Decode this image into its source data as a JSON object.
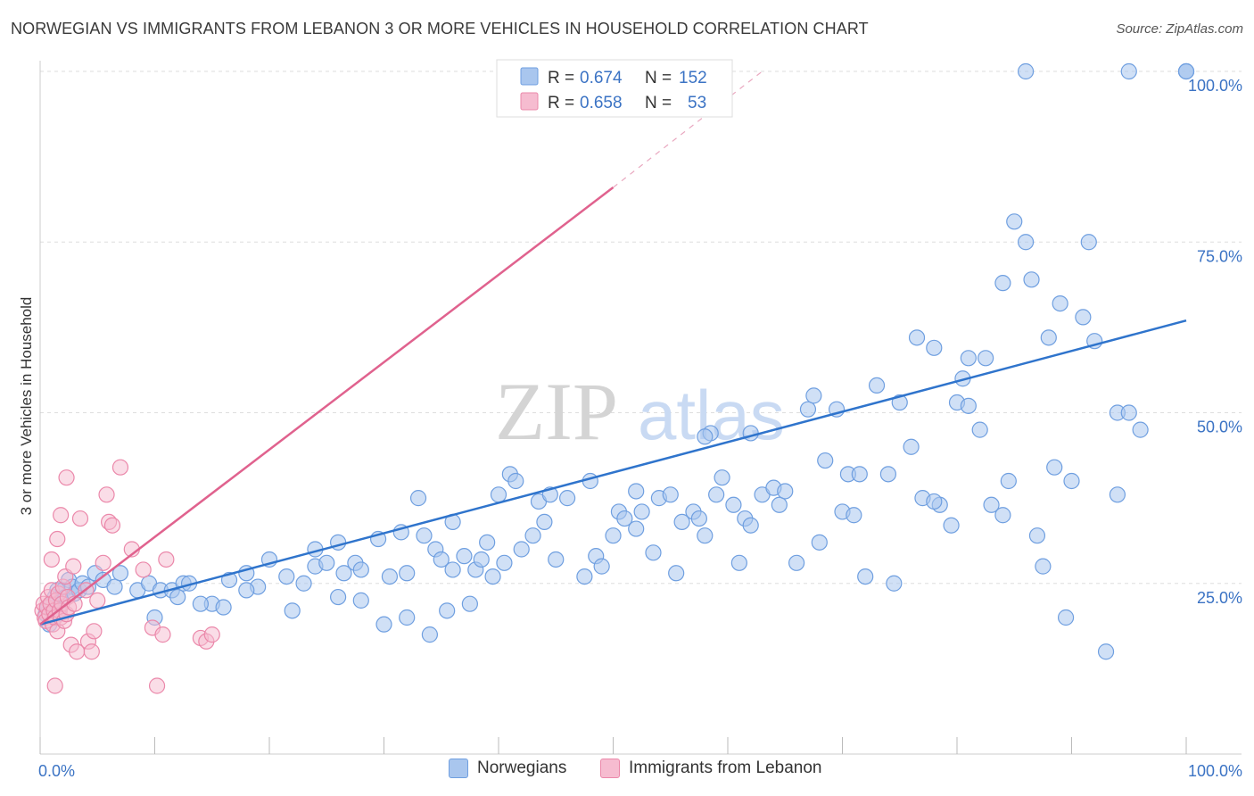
{
  "header": {
    "title": "NORWEGIAN VS IMMIGRANTS FROM LEBANON 3 OR MORE VEHICLES IN HOUSEHOLD CORRELATION CHART",
    "source": "Source: ZipAtlas.com"
  },
  "watermark": {
    "part1": "ZIP",
    "part2": "atlas"
  },
  "colors": {
    "blue_fill": "#a9c6ee",
    "blue_stroke": "#6f9fe0",
    "blue_line": "#2f74cc",
    "pink_fill": "#f6bcd0",
    "pink_stroke": "#eb88aa",
    "pink_line": "#e0628e",
    "accent_text": "#3b73c4",
    "grid": "#dddddd"
  },
  "legend": {
    "rows": [
      {
        "r_label": "R = ",
        "r_value": "0.674",
        "n_label": "N = ",
        "n_value": "152"
      },
      {
        "r_label": "R = ",
        "r_value": "0.658",
        "n_label": "N = ",
        "n_value": "53"
      }
    ]
  },
  "chart_data": {
    "type": "scatter",
    "title": "NORWEGIAN VS IMMIGRANTS FROM LEBANON 3 OR MORE VEHICLES IN HOUSEHOLD CORRELATION CHART",
    "xlabel": "",
    "ylabel": "3 or more Vehicles in Household",
    "xlim": [
      0,
      100
    ],
    "ylim": [
      0,
      102
    ],
    "x_tick_labels": [
      "0.0%",
      "100.0%"
    ],
    "y_tick_labels": [
      "25.0%",
      "50.0%",
      "75.0%",
      "100.0%"
    ],
    "y_ticks": [
      25,
      50,
      75,
      100
    ],
    "grid": true,
    "legend_position": "bottom",
    "series": [
      {
        "name": "Norwegians",
        "R": 0.674,
        "N": 152,
        "trend": {
          "x0": 0,
          "y0": 19,
          "x1": 100,
          "y1": 63.5
        },
        "points": [
          [
            0.5,
            20.5
          ],
          [
            0.7,
            21.5
          ],
          [
            0.8,
            19
          ],
          [
            1,
            22
          ],
          [
            1.2,
            20
          ],
          [
            1.3,
            23
          ],
          [
            1.5,
            24
          ],
          [
            1.6,
            21
          ],
          [
            1.8,
            22.5
          ],
          [
            2,
            24
          ],
          [
            2.2,
            23
          ],
          [
            2.5,
            25.5
          ],
          [
            2.8,
            24.5
          ],
          [
            3,
            23.5
          ],
          [
            3.4,
            24
          ],
          [
            3.7,
            25
          ],
          [
            4.2,
            24.5
          ],
          [
            4.8,
            26.5
          ],
          [
            5.5,
            25.5
          ],
          [
            6.5,
            24.5
          ],
          [
            7,
            26.5
          ],
          [
            8.5,
            24
          ],
          [
            9.5,
            25
          ],
          [
            10.5,
            24
          ],
          [
            11.5,
            24
          ],
          [
            12.5,
            25
          ],
          [
            13,
            25
          ],
          [
            15,
            22
          ],
          [
            16.5,
            25.5
          ],
          [
            18,
            26.5
          ],
          [
            19,
            24.5
          ],
          [
            20,
            28.5
          ],
          [
            21.5,
            26
          ],
          [
            23,
            25
          ],
          [
            24,
            27.5
          ],
          [
            25,
            28
          ],
          [
            26,
            31
          ],
          [
            26.5,
            26.5
          ],
          [
            27.5,
            28
          ],
          [
            28,
            27
          ],
          [
            29.5,
            31.5
          ],
          [
            30.5,
            26
          ],
          [
            31.5,
            32.5
          ],
          [
            32,
            26.5
          ],
          [
            33,
            37.5
          ],
          [
            33.5,
            32
          ],
          [
            34.5,
            30
          ],
          [
            35,
            28.5
          ],
          [
            36,
            27
          ],
          [
            37,
            29
          ],
          [
            38,
            27
          ],
          [
            38.5,
            28.5
          ],
          [
            39,
            31
          ],
          [
            39.5,
            26
          ],
          [
            40.5,
            28
          ],
          [
            41,
            41
          ],
          [
            41.5,
            40
          ],
          [
            43,
            32
          ],
          [
            43.5,
            37
          ],
          [
            44,
            34
          ],
          [
            45,
            28.5
          ],
          [
            46,
            37.5
          ],
          [
            47.5,
            26
          ],
          [
            48.5,
            29
          ],
          [
            49,
            27.5
          ],
          [
            50,
            32
          ],
          [
            50.5,
            35.5
          ],
          [
            51,
            34.5
          ],
          [
            52,
            38.5
          ],
          [
            52.5,
            35.5
          ],
          [
            53.5,
            29.5
          ],
          [
            54,
            37.5
          ],
          [
            55,
            38
          ],
          [
            55.5,
            26.5
          ],
          [
            56,
            34
          ],
          [
            57,
            35.5
          ],
          [
            57.5,
            34.5
          ],
          [
            58,
            32
          ],
          [
            58.5,
            47
          ],
          [
            59,
            38
          ],
          [
            59.5,
            40.5
          ],
          [
            60.5,
            36.5
          ],
          [
            61,
            28
          ],
          [
            61.5,
            34.5
          ],
          [
            62,
            33.5
          ],
          [
            63,
            38
          ],
          [
            64,
            39
          ],
          [
            64.5,
            36.5
          ],
          [
            65,
            38.5
          ],
          [
            66,
            28
          ],
          [
            67,
            50.5
          ],
          [
            67.5,
            52.5
          ],
          [
            68,
            31
          ],
          [
            68.5,
            43
          ],
          [
            69.5,
            50.5
          ],
          [
            70,
            35.5
          ],
          [
            70.5,
            41
          ],
          [
            71,
            35
          ],
          [
            71.5,
            41
          ],
          [
            72,
            26
          ],
          [
            73,
            54
          ],
          [
            74,
            41
          ],
          [
            74.5,
            25
          ],
          [
            75,
            51.5
          ],
          [
            76,
            45
          ],
          [
            76.5,
            61
          ],
          [
            77,
            37.5
          ],
          [
            78,
            59.5
          ],
          [
            78.5,
            36.5
          ],
          [
            79.5,
            33.5
          ],
          [
            80,
            51.5
          ],
          [
            81,
            58
          ],
          [
            82,
            47.5
          ],
          [
            82.5,
            58
          ],
          [
            83,
            36.5
          ],
          [
            84,
            35
          ],
          [
            84.5,
            40
          ],
          [
            85,
            78
          ],
          [
            86,
            75
          ],
          [
            86.5,
            69.5
          ],
          [
            87,
            32
          ],
          [
            87.5,
            27.5
          ],
          [
            88,
            61
          ],
          [
            89,
            66
          ],
          [
            89.5,
            20
          ],
          [
            90,
            40
          ],
          [
            91,
            64
          ],
          [
            92,
            60.5
          ],
          [
            93,
            15
          ],
          [
            94,
            50
          ],
          [
            95,
            50
          ],
          [
            96,
            47.5
          ],
          [
            78,
            37
          ],
          [
            81,
            51
          ],
          [
            62,
            47
          ],
          [
            58,
            46.5
          ],
          [
            40,
            38
          ],
          [
            36,
            34
          ],
          [
            30,
            19
          ],
          [
            26,
            23
          ],
          [
            22,
            21
          ],
          [
            18,
            24
          ],
          [
            16,
            21.5
          ],
          [
            10,
            20
          ],
          [
            12,
            23
          ],
          [
            14,
            22
          ],
          [
            24,
            30
          ],
          [
            28,
            22.5
          ],
          [
            32,
            20
          ],
          [
            34,
            17.5
          ],
          [
            35.5,
            21
          ],
          [
            37.5,
            22
          ],
          [
            42,
            30
          ],
          [
            44.5,
            38
          ],
          [
            48,
            40
          ],
          [
            52,
            33
          ],
          [
            80.5,
            55
          ],
          [
            100,
            100
          ]
        ],
        "extra_points": [
          [
            86,
            100
          ],
          [
            95,
            100
          ],
          [
            100,
            100
          ],
          [
            88.5,
            42
          ],
          [
            84,
            69
          ],
          [
            91.5,
            75
          ],
          [
            94,
            38
          ],
          [
            100,
            100
          ]
        ]
      },
      {
        "name": "Immigrants from Lebanon",
        "R": 0.658,
        "N": 53,
        "trend": {
          "x0": 0,
          "y0": 19,
          "x1": 50,
          "y1": 83,
          "dashed_to": {
            "x": 63,
            "y": 100
          }
        },
        "points": [
          [
            0.2,
            21
          ],
          [
            0.3,
            22
          ],
          [
            0.4,
            20
          ],
          [
            0.5,
            19.5
          ],
          [
            0.6,
            21.5
          ],
          [
            0.7,
            23
          ],
          [
            0.8,
            20.5
          ],
          [
            0.9,
            22
          ],
          [
            1,
            24
          ],
          [
            1.1,
            19
          ],
          [
            1.2,
            21
          ],
          [
            1.3,
            20
          ],
          [
            1.4,
            22.5
          ],
          [
            1.5,
            18
          ],
          [
            1.6,
            23.5
          ],
          [
            1.7,
            21
          ],
          [
            1.8,
            20
          ],
          [
            1.9,
            22
          ],
          [
            2,
            24.5
          ],
          [
            2.1,
            19.5
          ],
          [
            2.2,
            26
          ],
          [
            2.3,
            20.5
          ],
          [
            2.4,
            23
          ],
          [
            2.5,
            21.5
          ],
          [
            2.7,
            16
          ],
          [
            2.9,
            27.5
          ],
          [
            3,
            22
          ],
          [
            3.2,
            15
          ],
          [
            1,
            28.5
          ],
          [
            1.5,
            31.5
          ],
          [
            1.8,
            35
          ],
          [
            2.3,
            40.5
          ],
          [
            3.5,
            34.5
          ],
          [
            4,
            24
          ],
          [
            4.2,
            16.5
          ],
          [
            4.5,
            15
          ],
          [
            4.7,
            18
          ],
          [
            5,
            22.5
          ],
          [
            5.5,
            28
          ],
          [
            5.8,
            38
          ],
          [
            6,
            34
          ],
          [
            6.3,
            33.5
          ],
          [
            7,
            42
          ],
          [
            8,
            30
          ],
          [
            9,
            27
          ],
          [
            9.8,
            18.5
          ],
          [
            10.2,
            10
          ],
          [
            10.7,
            17.5
          ],
          [
            11,
            28.5
          ],
          [
            14,
            17
          ],
          [
            14.5,
            16.5
          ],
          [
            15,
            17.5
          ],
          [
            1.3,
            10
          ]
        ]
      }
    ]
  },
  "bottom_legend": {
    "items": [
      {
        "label": "Norwegians"
      },
      {
        "label": "Immigrants from Lebanon"
      }
    ]
  }
}
